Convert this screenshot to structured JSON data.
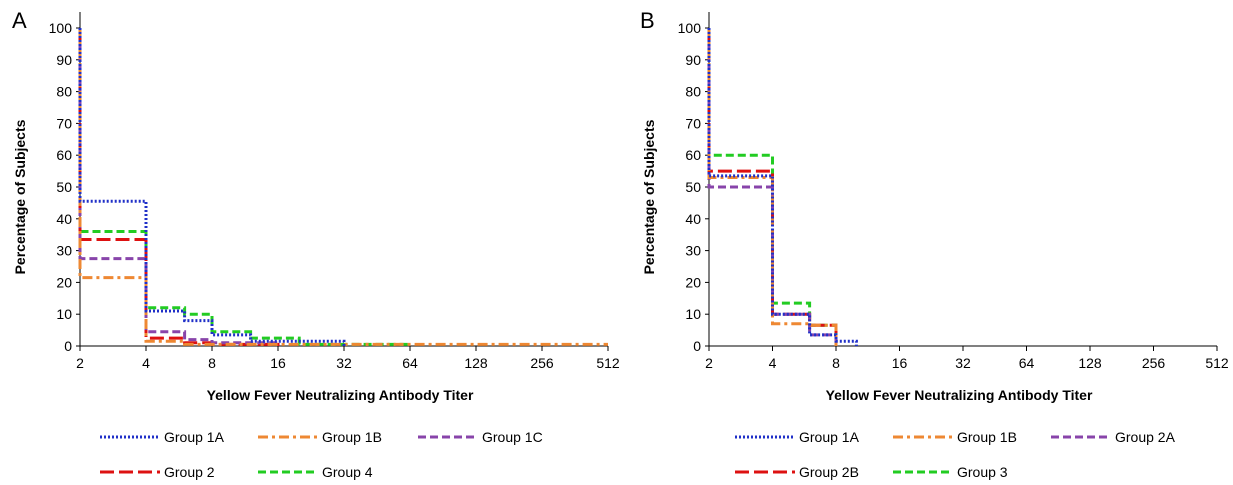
{
  "chart_data": [
    {
      "panel": "A",
      "type": "line",
      "xlabel": "Yellow Fever Neutralizing Antibody Titer",
      "ylabel": "Percentage of Subjects",
      "x_scale": "log2",
      "x_ticks": [
        "2",
        "4",
        "8",
        "16",
        "32",
        "64",
        "128",
        "256",
        "512"
      ],
      "y_ticks": [
        "0",
        "10",
        "20",
        "30",
        "40",
        "50",
        "60",
        "70",
        "80",
        "90",
        "100"
      ],
      "xlim": [
        2,
        512
      ],
      "ylim": [
        0,
        100
      ],
      "legend_position": "bottom",
      "series": [
        {
          "name": "Group 1A",
          "color": "#2030c8",
          "dash": "dotted",
          "x": [
            2,
            2,
            4,
            4,
            6,
            6,
            8,
            8,
            12,
            12,
            32,
            32
          ],
          "y": [
            100,
            45.5,
            45.5,
            11,
            11,
            8,
            8,
            3.5,
            3.5,
            1.5,
            1.5,
            0
          ]
        },
        {
          "name": "Group 1B",
          "color": "#ee8833",
          "dash": "dash-dot",
          "x": [
            2,
            2,
            4,
            4,
            6,
            6,
            512
          ],
          "y": [
            100,
            21.5,
            21.5,
            1.5,
            1.5,
            0.5,
            0.5
          ]
        },
        {
          "name": "Group 1C",
          "color": "#8844aa",
          "dash": "dashed",
          "x": [
            2,
            2,
            4,
            4,
            6,
            6,
            8,
            8,
            16,
            16
          ],
          "y": [
            100,
            27.5,
            27.5,
            4.5,
            4.5,
            2,
            2,
            1,
            1,
            0
          ]
        },
        {
          "name": "Group 2",
          "color": "#dd1111",
          "dash": "long-dash",
          "x": [
            2,
            2,
            4,
            4,
            6,
            6,
            8,
            8,
            16,
            16
          ],
          "y": [
            100,
            33.5,
            33.5,
            2.5,
            2.5,
            1,
            1,
            0.5,
            0.5,
            0
          ]
        },
        {
          "name": "Group 4",
          "color": "#22cc22",
          "dash": "dashed",
          "x": [
            2,
            2,
            4,
            4,
            6,
            6,
            8,
            8,
            12,
            12,
            20,
            20,
            64,
            64
          ],
          "y": [
            100,
            36,
            36,
            12,
            12,
            10,
            10,
            4.5,
            4.5,
            2.5,
            2.5,
            0.5,
            0.5,
            0
          ]
        }
      ]
    },
    {
      "panel": "B",
      "type": "line",
      "xlabel": "Yellow Fever Neutralizing Antibody Titer",
      "ylabel": "Percentage of Subjects",
      "x_scale": "log2",
      "x_ticks": [
        "2",
        "4",
        "8",
        "16",
        "32",
        "64",
        "128",
        "256",
        "512"
      ],
      "y_ticks": [
        "0",
        "10",
        "20",
        "30",
        "40",
        "50",
        "60",
        "70",
        "80",
        "90",
        "100"
      ],
      "xlim": [
        2,
        512
      ],
      "ylim": [
        0,
        100
      ],
      "legend_position": "bottom",
      "series": [
        {
          "name": "Group 1A",
          "color": "#2030c8",
          "dash": "dotted",
          "x": [
            2,
            2,
            4,
            4,
            6,
            6,
            8,
            8,
            10,
            10
          ],
          "y": [
            100,
            53.5,
            53.5,
            10,
            10,
            3.5,
            3.5,
            1.5,
            1.5,
            0
          ]
        },
        {
          "name": "Group 1B",
          "color": "#ee8833",
          "dash": "dash-dot",
          "x": [
            2,
            2,
            4,
            4,
            6,
            6,
            8,
            8
          ],
          "y": [
            100,
            53,
            53,
            7,
            7,
            6.5,
            6.5,
            0
          ]
        },
        {
          "name": "Group 2A",
          "color": "#8844aa",
          "dash": "dashed",
          "x": [
            2,
            2,
            4,
            4,
            6,
            6,
            8,
            8
          ],
          "y": [
            100,
            50,
            50,
            10,
            10,
            3.5,
            3.5,
            0
          ]
        },
        {
          "name": "Group 2B",
          "color": "#dd1111",
          "dash": "long-dash",
          "x": [
            2,
            2,
            4,
            4,
            6,
            6,
            8,
            8
          ],
          "y": [
            100,
            55,
            55,
            10,
            10,
            6.5,
            6.5,
            0
          ]
        },
        {
          "name": "Group 3",
          "color": "#22cc22",
          "dash": "dashed",
          "x": [
            2,
            2,
            4,
            4,
            6,
            6,
            8,
            8
          ],
          "y": [
            100,
            60,
            60,
            13.5,
            13.5,
            6.5,
            6.5,
            0
          ]
        }
      ]
    }
  ]
}
